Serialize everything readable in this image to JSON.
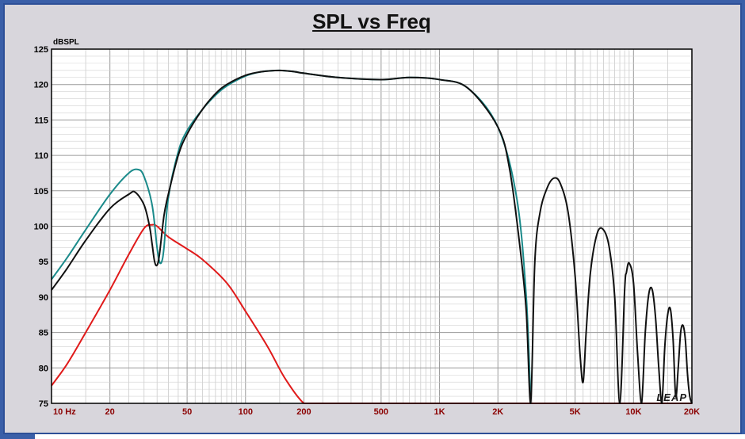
{
  "chart_data": {
    "type": "line",
    "title": "SPL vs Freq",
    "ylabel": "dBSPL",
    "xlabel": "",
    "x_scale": "log",
    "xlim": [
      10,
      20000
    ],
    "ylim": [
      75,
      125
    ],
    "grid": true,
    "x_ticks": [
      {
        "value": 10,
        "label": "10 Hz"
      },
      {
        "value": 20,
        "label": "20"
      },
      {
        "value": 50,
        "label": "50"
      },
      {
        "value": 100,
        "label": "100"
      },
      {
        "value": 200,
        "label": "200"
      },
      {
        "value": 500,
        "label": "500"
      },
      {
        "value": 1000,
        "label": "1K"
      },
      {
        "value": 2000,
        "label": "2K"
      },
      {
        "value": 5000,
        "label": "5K"
      },
      {
        "value": 10000,
        "label": "10K"
      },
      {
        "value": 20000,
        "label": "20K"
      }
    ],
    "y_ticks": [
      75,
      80,
      85,
      90,
      95,
      100,
      105,
      110,
      115,
      120,
      125
    ],
    "watermark": "LEAP",
    "series": [
      {
        "color": "#e01a1a",
        "x": [
          10,
          12,
          15,
          20,
          25,
          30,
          33,
          35,
          40,
          50,
          60,
          80,
          100,
          130,
          160,
          200,
          230,
          300,
          1000,
          5000,
          20000
        ],
        "y": [
          77.5,
          80.5,
          85,
          91,
          96,
          99.7,
          100.2,
          100,
          98.5,
          96.8,
          95.3,
          92,
          88,
          83,
          78.5,
          75,
          75,
          75,
          75,
          75,
          75
        ]
      },
      {
        "color": "#1a8a8a",
        "x": [
          10,
          12,
          15,
          20,
          25,
          28,
          30,
          33,
          35,
          36,
          37,
          38,
          40,
          45,
          50,
          60,
          70,
          80,
          100,
          120,
          150,
          180,
          200,
          300,
          500,
          700,
          1000,
          1400,
          2000,
          2500,
          2800,
          2950
        ],
        "y": [
          92.5,
          95.5,
          99.5,
          104.5,
          107.5,
          108,
          107,
          103,
          97,
          95,
          95,
          97,
          104,
          110.5,
          113.5,
          116.5,
          118.5,
          119.8,
          121.2,
          121.8,
          122,
          121.8,
          121.6,
          121,
          120.7,
          121,
          120.7,
          119.5,
          114,
          104,
          90,
          75
        ]
      },
      {
        "color": "#111111",
        "x": [
          10,
          12,
          15,
          20,
          25,
          27,
          30,
          32,
          33,
          34,
          35,
          36,
          38,
          40,
          45,
          50,
          60,
          70,
          80,
          100,
          120,
          150,
          180,
          200,
          300,
          500,
          700,
          1000,
          1400,
          2000,
          2300,
          2600,
          2800,
          2950,
          3100,
          3300,
          3600,
          3900,
          4200,
          4600,
          5000,
          5300,
          5500,
          5700,
          6000,
          6500,
          7000,
          7500,
          8000,
          8500,
          9000,
          9200,
          9500,
          10000,
          10500,
          11000,
          11500,
          12000,
          12500,
          13000,
          13500,
          14000,
          14500,
          15000,
          15500,
          16000,
          16500,
          17000,
          17500,
          18000,
          18500,
          19000,
          19500,
          20000
        ],
        "y": [
          91,
          94,
          98,
          102.5,
          104.5,
          104.8,
          103,
          100,
          97.5,
          95,
          94.5,
          96,
          101.5,
          104.5,
          110,
          113,
          116.5,
          118.7,
          120,
          121.3,
          121.8,
          122,
          121.8,
          121.6,
          121,
          120.7,
          121,
          120.7,
          119.5,
          114,
          108,
          97,
          88,
          75,
          95,
          102,
          105.5,
          106.8,
          106,
          102,
          93,
          82,
          78,
          85,
          93.5,
          99,
          99.5,
          97,
          90,
          75,
          91,
          93.5,
          94.8,
          92,
          82,
          75,
          85,
          90.5,
          91,
          87,
          80,
          75,
          83,
          87.5,
          88.3,
          84,
          76,
          80,
          85,
          86,
          84,
          79,
          76,
          75
        ]
      }
    ]
  }
}
